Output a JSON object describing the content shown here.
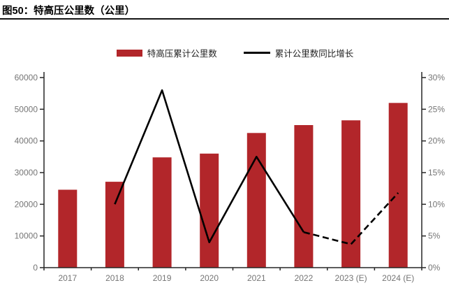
{
  "figure": {
    "title": "图50：特高压公里数（公里）"
  },
  "chart_data": {
    "type": "bar+line",
    "categories": [
      "2017",
      "2018",
      "2019",
      "2020",
      "2021",
      "2022",
      "2023 (E)",
      "2024 (E)"
    ],
    "series": [
      {
        "name": "特高压累计公里数",
        "type": "bar",
        "axis": "left",
        "color": "#B2262A",
        "values": [
          24600,
          27100,
          34800,
          36000,
          42500,
          45000,
          46500,
          52000
        ]
      },
      {
        "name": "累计公里数同比增长",
        "type": "line",
        "axis": "right",
        "color": "#000000",
        "unit": "%",
        "values": [
          null,
          10.0,
          28.0,
          4.0,
          17.5,
          5.6,
          3.7,
          11.8
        ],
        "dashed_from_index": 5
      }
    ],
    "left_axis": {
      "min": 0,
      "max": 60000,
      "step": 10000,
      "tick_labels": [
        "0",
        "10000",
        "20000",
        "30000",
        "40000",
        "50000",
        "60000"
      ]
    },
    "right_axis": {
      "min": 0,
      "max": 30,
      "step": 5,
      "tick_labels": [
        "0%",
        "5%",
        "10%",
        "15%",
        "20%",
        "25%",
        "30%"
      ]
    },
    "grid": false,
    "legend_position": "top-center",
    "axis_text_color": "#757575",
    "axis_line_color": "#262626"
  }
}
